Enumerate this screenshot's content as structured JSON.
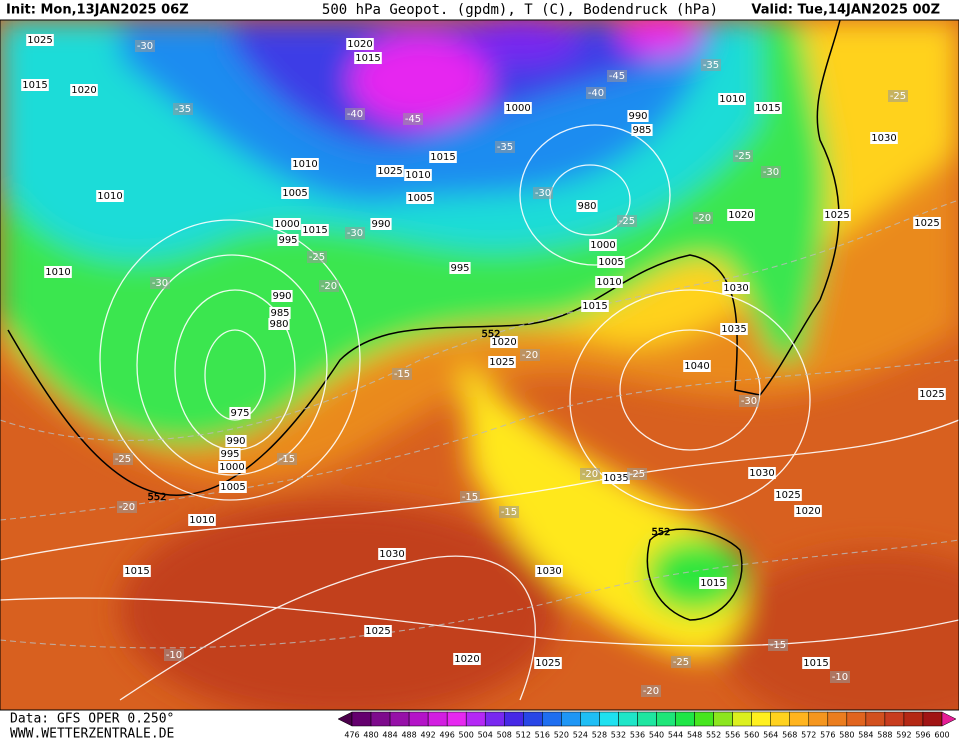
{
  "header": {
    "init": "Init: Mon,13JAN2025 06Z",
    "title": "500 hPa Geopot. (gpdm), T (C), Bodendruck (hPa)",
    "valid": "Valid: Tue,14JAN2025 00Z"
  },
  "footer": {
    "data": "Data: GFS OPER 0.250°",
    "site": "WWW.WETTERZENTRALE.DE"
  },
  "colorbar": {
    "ticks": [
      476,
      480,
      484,
      488,
      492,
      496,
      500,
      504,
      508,
      512,
      516,
      520,
      524,
      528,
      532,
      536,
      540,
      544,
      548,
      552,
      556,
      560,
      564,
      568,
      572,
      576,
      580,
      584,
      588,
      592,
      596,
      600
    ],
    "colors": [
      "#4b004b",
      "#64006e",
      "#7d0a8c",
      "#9610a8",
      "#b414c8",
      "#d21ee1",
      "#e628f0",
      "#b428f5",
      "#7828f0",
      "#4628e6",
      "#2846e6",
      "#1e6ef0",
      "#1e96f5",
      "#1ebef5",
      "#1ee1f0",
      "#1ee6c8",
      "#1ee6a0",
      "#1ee678",
      "#1ee646",
      "#46e61e",
      "#8ce61e",
      "#dcf01e",
      "#fff01e",
      "#ffd21e",
      "#ffb41e",
      "#f5961e",
      "#eb7d1e",
      "#e1641e",
      "#d2501e",
      "#c83c1e",
      "#b42814",
      "#a01414",
      "#e61e96"
    ]
  },
  "isobar_labels": [
    "1025",
    "1015",
    "1020",
    "1020",
    "1015",
    "1000",
    "990",
    "985",
    "1010",
    "1015",
    "1030",
    "1010",
    "1010",
    "1025",
    "1010",
    "1015",
    "1005",
    "1005",
    "980",
    "1020",
    "1025",
    "1025",
    "1000",
    "995",
    "1015",
    "990",
    "1000",
    "1005",
    "1010",
    "995",
    "1010",
    "990",
    "985",
    "980",
    "1015",
    "1030",
    "1035",
    "1020",
    "1025",
    "1040",
    "975",
    "990",
    "995",
    "1000",
    "1005",
    "1030",
    "1025",
    "1020",
    "1035",
    "1010",
    "1015",
    "1030",
    "1030",
    "1015",
    "1025",
    "1020",
    "1025",
    "1015",
    "1025"
  ],
  "temperature_labels": [
    "-30",
    "-35",
    "-40",
    "-45",
    "-35",
    "-45",
    "-40",
    "-35",
    "-25",
    "-25",
    "-30",
    "-30",
    "-25",
    "-20",
    "-30",
    "-25",
    "-20",
    "-30",
    "-15",
    "-20",
    "-30",
    "-25",
    "-15",
    "-20",
    "-25",
    "-15",
    "-15",
    "-20",
    "-15",
    "-10",
    "-25",
    "-20",
    "-10"
  ],
  "height_labels": [
    "552",
    "552",
    "552"
  ]
}
